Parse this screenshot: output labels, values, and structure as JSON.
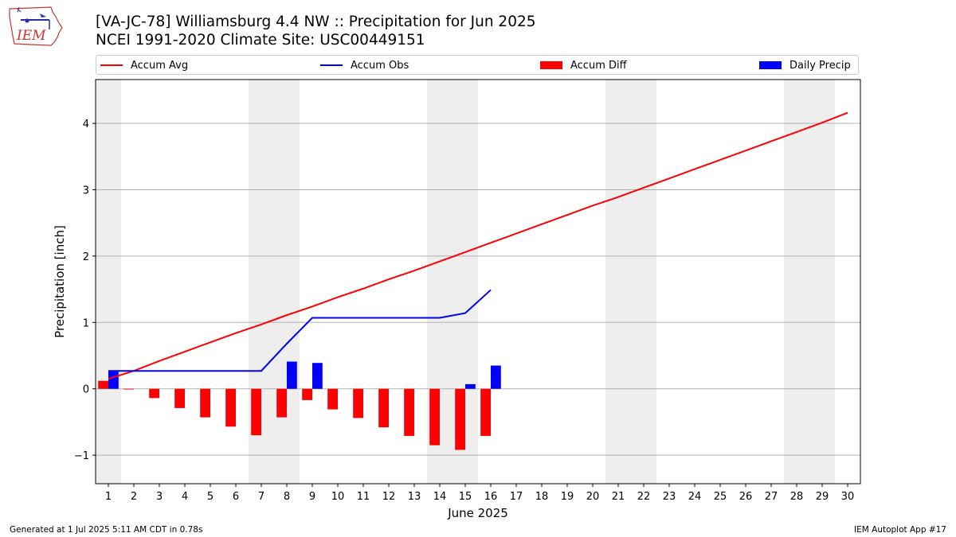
{
  "header": {
    "title_line1": "[VA-JC-78] Williamsburg 4.4 NW :: Precipitation for Jun 2025",
    "title_line2": "NCEI 1991-2020 Climate Site: USC00449151",
    "logo_text": "IEM"
  },
  "footer": {
    "generated": "Generated at 1 Jul 2025 5:11 AM CDT in 0.78s",
    "app": "IEM Autoplot App #17"
  },
  "colors": {
    "accum_avg": "#ff0000",
    "accum_obs": "#0000ff",
    "accum_diff": "#ff0000",
    "daily_precip": "#0000ff",
    "weekend_shade": "#eeeeee",
    "grid": "#b0b0b0"
  },
  "chart_data": {
    "type": "bar",
    "xlabel": "June 2025",
    "ylabel": "Precipitation [inch]",
    "xlim": [
      0.5,
      30.5
    ],
    "ylim": [
      -1.43,
      4.66
    ],
    "grid": "horizontal",
    "legend_placement": "top",
    "x_ticks": [
      "1",
      "2",
      "3",
      "4",
      "5",
      "6",
      "7",
      "8",
      "9",
      "10",
      "11",
      "12",
      "13",
      "14",
      "15",
      "16",
      "17",
      "18",
      "19",
      "20",
      "21",
      "22",
      "23",
      "24",
      "25",
      "26",
      "27",
      "28",
      "29",
      "30"
    ],
    "y_ticks": [
      -1,
      0,
      1,
      2,
      3,
      4
    ],
    "y_tick_labels": [
      "−1",
      "0",
      "1",
      "2",
      "3",
      "4"
    ],
    "weekend_shading": [
      [
        0.5,
        1.5
      ],
      [
        6.5,
        8.5
      ],
      [
        13.5,
        15.5
      ],
      [
        20.5,
        22.5
      ],
      [
        27.5,
        29.5
      ]
    ],
    "legend": [
      "Accum Avg",
      "Accum Obs",
      "Accum Diff",
      "Daily Precip"
    ],
    "series": [
      {
        "name": "Accum Avg",
        "kind": "line",
        "x": [
          1,
          2,
          3,
          4,
          5,
          6,
          7,
          8,
          9,
          10,
          11,
          12,
          13,
          14,
          15,
          16,
          17,
          18,
          19,
          20,
          21,
          22,
          23,
          24,
          25,
          26,
          27,
          28,
          29,
          30
        ],
        "values": [
          0.15,
          0.27,
          0.42,
          0.56,
          0.7,
          0.84,
          0.97,
          1.11,
          1.24,
          1.38,
          1.51,
          1.65,
          1.78,
          1.92,
          2.06,
          2.2,
          2.34,
          2.48,
          2.62,
          2.76,
          2.89,
          3.03,
          3.17,
          3.31,
          3.45,
          3.59,
          3.73,
          3.87,
          4.01,
          4.16
        ]
      },
      {
        "name": "Accum Obs",
        "kind": "line",
        "x": [
          1,
          2,
          3,
          4,
          5,
          6,
          7,
          8,
          9,
          10,
          11,
          12,
          13,
          14,
          15,
          16
        ],
        "values": [
          0.27,
          0.27,
          0.27,
          0.27,
          0.27,
          0.27,
          0.27,
          0.68,
          1.07,
          1.07,
          1.07,
          1.07,
          1.07,
          1.07,
          1.14,
          1.49
        ]
      },
      {
        "name": "Accum Diff",
        "kind": "bar",
        "x": [
          1,
          2,
          3,
          4,
          5,
          6,
          7,
          8,
          9,
          10,
          11,
          12,
          13,
          14,
          15,
          16
        ],
        "values": [
          0.12,
          -0.01,
          -0.14,
          -0.29,
          -0.43,
          -0.57,
          -0.7,
          -0.43,
          -0.17,
          -0.31,
          -0.44,
          -0.58,
          -0.71,
          -0.85,
          -0.92,
          -0.71
        ]
      },
      {
        "name": "Daily Precip",
        "kind": "bar",
        "x": [
          1,
          2,
          3,
          4,
          5,
          6,
          7,
          8,
          9,
          10,
          11,
          12,
          13,
          14,
          15,
          16
        ],
        "values": [
          0.27,
          0,
          0,
          0,
          0,
          0,
          0,
          0.41,
          0.39,
          0,
          0,
          0,
          0,
          0,
          0.07,
          0.35
        ]
      }
    ]
  }
}
